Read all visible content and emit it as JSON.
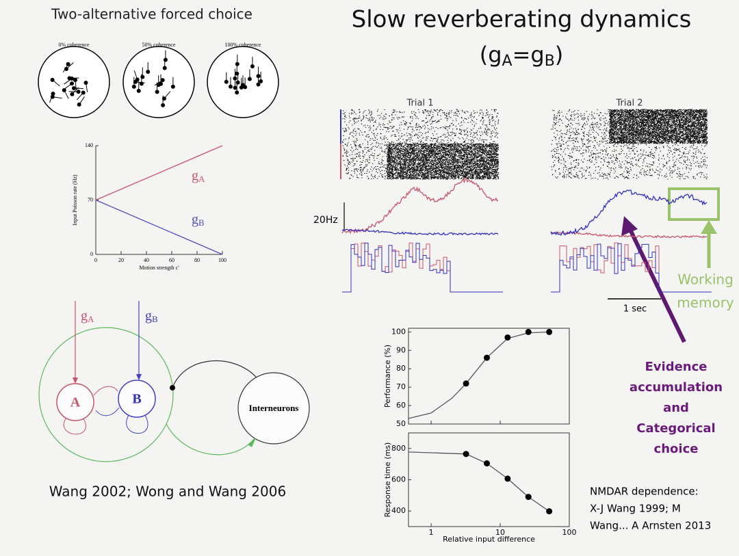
{
  "header": {
    "left_title": "Two-alternative forced choice",
    "title": "Slow reverberating dynamics",
    "subtitle": [
      "(g",
      "A",
      "=g",
      "B",
      ")"
    ]
  },
  "coherence_labels": [
    "0% coherence",
    "50% coherence",
    "100% coherence"
  ],
  "trials": [
    "Trial 1",
    "Trial 2"
  ],
  "scale_rate": "20Hz",
  "scale_time": "1 sec",
  "working_memory": [
    "Working",
    "memory"
  ],
  "evidence": [
    "Evidence",
    "accumulation",
    "and",
    "Categorical",
    "choice"
  ],
  "circuit": {
    "symbol": "g",
    "inputs": [
      "A",
      "B"
    ],
    "populations": [
      "A",
      "B"
    ],
    "inhibitory": "Interneurons"
  },
  "citation_left": "Wang 2002; Wong and Wang 2006",
  "citation_right": [
    "NMDAR dependence:",
    "X-J Wang 1999; M",
    "Wang... A Arnsten 2013"
  ],
  "chart_data": [
    {
      "type": "line",
      "ylabel": "Input Poisson rate (Hz)",
      "xlabel": "Motion strength c'",
      "x": [
        0,
        100
      ],
      "xlim": [
        0,
        100
      ],
      "xticks": [
        0,
        20,
        40,
        60,
        80,
        100
      ],
      "ylim": [
        0,
        140
      ],
      "yticks": [
        0,
        70,
        140
      ],
      "series_symbol": "g",
      "series": [
        {
          "name": "A",
          "color": "#c8546a",
          "values": [
            70,
            140
          ]
        },
        {
          "name": "B",
          "color": "#5050c0",
          "values": [
            70,
            0
          ]
        }
      ]
    },
    {
      "type": "line",
      "ylabel": "Performance (%)",
      "xscale": "log",
      "xlim": [
        0.47,
        100
      ],
      "xticks": [
        1,
        10,
        100
      ],
      "xtick_labels": false,
      "ylim": [
        50,
        102
      ],
      "yticks": [
        50,
        60,
        70,
        80,
        90,
        100
      ],
      "series": [
        {
          "style": "line",
          "color": "#555555",
          "x": [
            0.47,
            1,
            2,
            3.2,
            6.4,
            12.8,
            25.6,
            51.2
          ],
          "values": [
            53,
            56,
            64,
            72,
            86,
            96.5,
            99.5,
            100
          ]
        },
        {
          "style": "points",
          "color": "#000000",
          "x": [
            3.2,
            6.4,
            12.8,
            25.6,
            51.2
          ],
          "values": [
            72,
            86,
            97,
            100,
            100
          ]
        }
      ]
    },
    {
      "type": "line",
      "ylabel": "Response time (ms)",
      "xlabel": "Relative input difference",
      "xscale": "log",
      "xlim": [
        0.47,
        100
      ],
      "xticks": [
        1,
        10,
        100
      ],
      "xtick_labels": true,
      "ylim": [
        300,
        900
      ],
      "yticks": [
        400,
        600,
        800
      ],
      "series": [
        {
          "style": "line",
          "color": "#555555",
          "x": [
            0.47,
            3.2,
            6.4,
            12.8,
            25.6,
            51.2
          ],
          "values": [
            778,
            765,
            705,
            607,
            490,
            398
          ]
        },
        {
          "style": "points",
          "color": "#000000",
          "x": [
            3.2,
            6.4,
            12.8,
            25.6,
            51.2
          ],
          "values": [
            765,
            705,
            607,
            490,
            398
          ]
        }
      ]
    }
  ]
}
